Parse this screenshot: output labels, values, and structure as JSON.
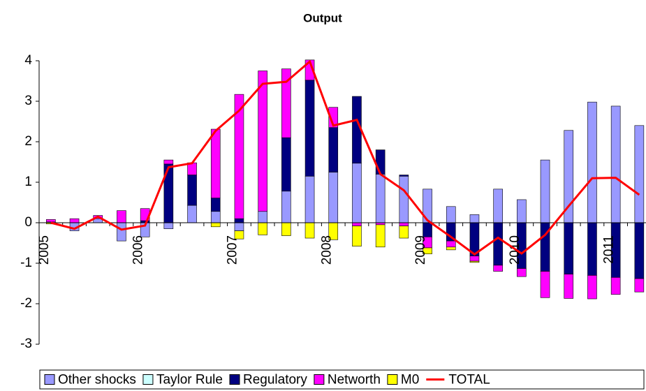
{
  "chart_data": {
    "type": "bar",
    "title": "Output",
    "categories": [
      "2005",
      null,
      null,
      null,
      "2006",
      null,
      null,
      null,
      "2007",
      null,
      null,
      null,
      "2008",
      null,
      null,
      null,
      "2009",
      null,
      null,
      null,
      "2010",
      null,
      null,
      null,
      "2011",
      null
    ],
    "ylim": [
      -3,
      4
    ],
    "yticks": [
      -3,
      -2,
      -1,
      0,
      1,
      2,
      3,
      4
    ],
    "grid": false,
    "stacked": true,
    "legend": "bottom",
    "series": [
      {
        "name": "Other shocks",
        "color": "#9999ff",
        "values": [
          0.02,
          -0.2,
          0.1,
          -0.45,
          -0.35,
          -0.15,
          0.43,
          0.28,
          -0.2,
          0.28,
          0.78,
          1.15,
          1.25,
          1.47,
          1.2,
          1.15,
          0.83,
          0.4,
          0.2,
          0.83,
          0.57,
          1.55,
          2.28,
          2.98,
          2.88,
          2.4
        ]
      },
      {
        "name": "Taylor Rule",
        "color": "#ccffff",
        "values": [
          0,
          0,
          0,
          0,
          0,
          0,
          0,
          0,
          0,
          0,
          0,
          0,
          0,
          0,
          0,
          0,
          0,
          0,
          0,
          0,
          0,
          0,
          0,
          0,
          0,
          0
        ]
      },
      {
        "name": "Regulatory",
        "color": "#000080",
        "values": [
          0,
          0,
          0,
          0,
          0.05,
          1.45,
          0.75,
          0.33,
          0.1,
          0,
          1.32,
          2.37,
          1.1,
          1.65,
          0.6,
          0.03,
          -0.35,
          -0.45,
          -0.82,
          -1.05,
          -1.13,
          -1.2,
          -1.27,
          -1.3,
          -1.35,
          -1.38
        ]
      },
      {
        "name": "Networth",
        "color": "#ff00ff",
        "values": [
          0.06,
          0.1,
          0.08,
          0.3,
          0.3,
          0.1,
          0.3,
          1.7,
          3.07,
          3.47,
          1.7,
          0.5,
          0.5,
          -0.08,
          -0.05,
          -0.08,
          -0.27,
          -0.15,
          -0.13,
          -0.15,
          -0.2,
          -0.65,
          -0.6,
          -0.58,
          -0.42,
          -0.33
        ]
      },
      {
        "name": "M0",
        "color": "#ffff00",
        "values": [
          -0.03,
          0,
          0,
          0,
          0,
          0,
          0,
          -0.1,
          -0.2,
          -0.3,
          -0.32,
          -0.38,
          -0.42,
          -0.5,
          -0.55,
          -0.3,
          -0.15,
          -0.07,
          -0.03,
          0,
          0,
          0,
          0,
          0,
          0,
          0
        ]
      },
      {
        "name": "TOTAL",
        "type": "line",
        "color": "#ff0000",
        "values": [
          0,
          -0.15,
          0.15,
          -0.17,
          -0.07,
          1.37,
          1.47,
          2.27,
          2.77,
          3.43,
          3.48,
          3.98,
          2.4,
          2.54,
          1.2,
          0.8,
          0.06,
          -0.35,
          -0.78,
          -0.37,
          -0.76,
          -0.3,
          0.41,
          1.1,
          1.11,
          0.69
        ]
      }
    ]
  }
}
